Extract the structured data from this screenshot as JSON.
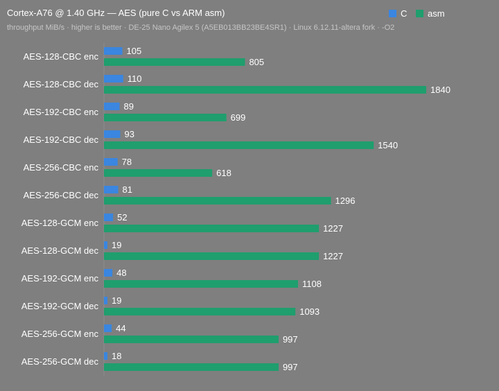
{
  "chart_data": {
    "type": "bar",
    "orientation": "horizontal",
    "title": "Cortex-A76 @ 1.40 GHz — AES (pure C vs ARM asm)",
    "subtitle": "throughput MiB/s · higher is better · DE-25 Nano Agilex 5 (A5EB013BB23BE4SR1) · Linux 6.12.11-altera fork · -O2",
    "categories": [
      "AES-128-CBC enc",
      "AES-128-CBC dec",
      "AES-192-CBC enc",
      "AES-192-CBC dec",
      "AES-256-CBC enc",
      "AES-256-CBC dec",
      "AES-128-GCM enc",
      "AES-128-GCM dec",
      "AES-192-GCM enc",
      "AES-192-GCM dec",
      "AES-256-GCM enc",
      "AES-256-GCM dec"
    ],
    "series": [
      {
        "name": "C",
        "color": "#3a86e0",
        "values": [
          105,
          110,
          89,
          93,
          78,
          81,
          52,
          19,
          48,
          19,
          44,
          18
        ]
      },
      {
        "name": "asm",
        "color": "#1f9e6e",
        "values": [
          805,
          1840,
          699,
          1540,
          618,
          1296,
          1227,
          1227,
          1108,
          1093,
          997,
          997
        ]
      }
    ],
    "xlim": [
      0,
      2000
    ],
    "legend_position": "top-right",
    "grid": false
  }
}
